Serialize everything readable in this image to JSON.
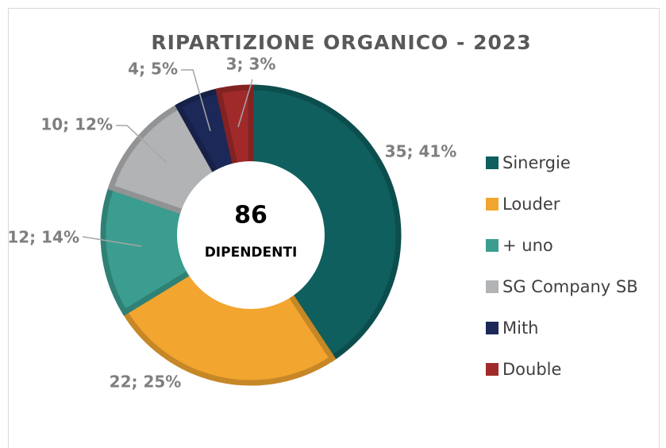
{
  "chart_data": {
    "type": "donut",
    "title": "RIPARTIZIONE ORGANICO - 2023",
    "categories": [
      "Sinergie",
      "Louder",
      "+ uno",
      "SG Company SB",
      "Mith",
      "Double"
    ],
    "values": [
      35,
      22,
      12,
      10,
      4,
      3
    ],
    "value_labels": [
      "35; 41%",
      "22; 25%",
      "12; 14%",
      "10; 12%",
      "4; 5%",
      "3; 3%"
    ],
    "colors": [
      "#0f5f5e",
      "#f2a52f",
      "#3b9d8f",
      "#b1b3b4",
      "#1c2858",
      "#a02a2a"
    ],
    "total": 86,
    "total_label": "DIPENDENTI",
    "legend": "right"
  }
}
